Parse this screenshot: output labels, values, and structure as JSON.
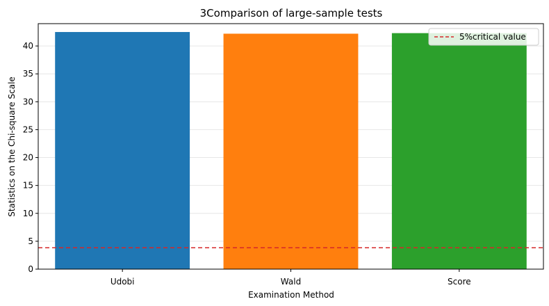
{
  "chart_data": {
    "type": "bar",
    "title": "3Comparison of large-sample tests",
    "xlabel": "Examination Method",
    "ylabel": "Statistics on the Chi-square Scale",
    "categories": [
      "Udobi",
      "Wald",
      "Score"
    ],
    "values": [
      42.5,
      42.2,
      42.3
    ],
    "colors": [
      "#1f77b4",
      "#ff7f0e",
      "#2ca02c"
    ],
    "ylim": [
      0,
      44
    ],
    "yticks": [
      0,
      5,
      10,
      15,
      20,
      25,
      30,
      35,
      40
    ],
    "grid": true,
    "reference_line": {
      "label": "5%critical value",
      "value": 3.84,
      "color": "#d62728",
      "style": "dashed"
    },
    "legend_position": "top-right"
  }
}
